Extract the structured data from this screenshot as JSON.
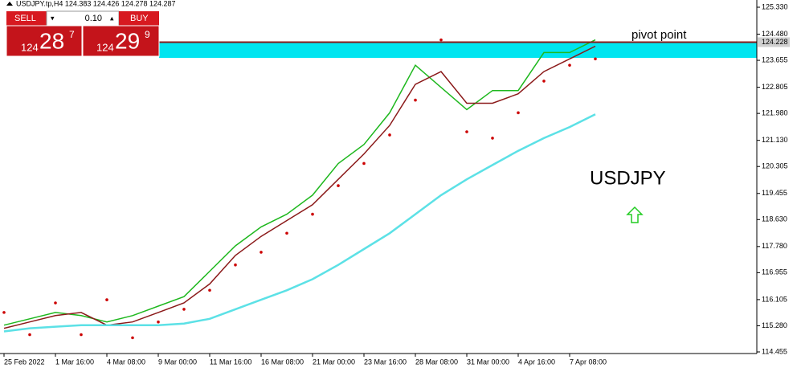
{
  "chart_data": {
    "type": "line",
    "symbol_header": "USDJPY.tp,H4  124.383 124.426 124.278 124.287",
    "x": [
      0,
      8,
      16,
      24,
      32,
      40,
      48,
      56,
      64,
      72,
      80,
      88,
      96,
      104,
      112,
      120,
      128,
      136,
      144,
      152,
      160,
      168,
      176,
      184
    ],
    "xlim": [
      -1.25,
      234.25
    ],
    "xticks": [
      {
        "value": 0,
        "label": "25 Feb 2022"
      },
      {
        "value": 16,
        "label": "1 Mar 16:00"
      },
      {
        "value": 32,
        "label": "4 Mar 08:00"
      },
      {
        "value": 48,
        "label": "9 Mar 00:00"
      },
      {
        "value": 64,
        "label": "11 Mar 16:00"
      },
      {
        "value": 80,
        "label": "16 Mar 08:00"
      },
      {
        "value": 96,
        "label": "21 Mar 00:00"
      },
      {
        "value": 112,
        "label": "23 Mar 16:00"
      },
      {
        "value": 128,
        "label": "28 Mar 08:00"
      },
      {
        "value": 144,
        "label": "31 Mar 00:00"
      },
      {
        "value": 160,
        "label": "4 Apr 16:00"
      },
      {
        "value": 176,
        "label": "7 Apr 08:00"
      }
    ],
    "ylim": [
      114.404,
      125.558
    ],
    "yticks": [
      {
        "value": 125.33,
        "label": "125.330"
      },
      {
        "value": 124.48,
        "label": "124.480"
      },
      {
        "value": 123.655,
        "label": "123.655"
      },
      {
        "value": 122.805,
        "label": "122.805"
      },
      {
        "value": 121.98,
        "label": "121.980"
      },
      {
        "value": 121.13,
        "label": "121.130"
      },
      {
        "value": 120.305,
        "label": "120.305"
      },
      {
        "value": 119.455,
        "label": "119.455"
      },
      {
        "value": 118.63,
        "label": "118.630"
      },
      {
        "value": 117.78,
        "label": "117.780"
      },
      {
        "value": 116.955,
        "label": "116.955"
      },
      {
        "value": 116.105,
        "label": "116.105"
      },
      {
        "value": 115.28,
        "label": "115.280"
      },
      {
        "value": 114.455,
        "label": "114.455"
      }
    ],
    "series": [
      {
        "style": "line",
        "color": "#1fb81f",
        "width": 1.5,
        "values": [
          115.3,
          115.5,
          115.7,
          115.6,
          115.4,
          115.6,
          115.9,
          116.2,
          117.0,
          117.8,
          118.4,
          118.8,
          119.4,
          120.4,
          121.0,
          122.0,
          123.5,
          122.8,
          122.1,
          122.7,
          122.7,
          123.9,
          123.9,
          124.3
        ]
      },
      {
        "style": "line",
        "color": "#8b1a1a",
        "width": 1.5,
        "values": [
          115.2,
          115.4,
          115.6,
          115.7,
          115.3,
          115.4,
          115.7,
          116.0,
          116.6,
          117.5,
          118.1,
          118.6,
          119.1,
          119.9,
          120.7,
          121.6,
          122.9,
          123.3,
          122.3,
          122.3,
          122.6,
          123.3,
          123.7,
          124.1
        ]
      },
      {
        "style": "line",
        "color": "#5ce1e6",
        "width": 2.5,
        "values": [
          115.1,
          115.2,
          115.25,
          115.3,
          115.3,
          115.3,
          115.3,
          115.35,
          115.5,
          115.8,
          116.1,
          116.4,
          116.75,
          117.2,
          117.7,
          118.2,
          118.8,
          119.4,
          119.9,
          120.35,
          120.8,
          121.2,
          121.55,
          121.95
        ]
      },
      {
        "style": "dots",
        "color": "#cc0000",
        "width": 1.8,
        "values": [
          115.7,
          115.0,
          116.0,
          115.0,
          116.1,
          114.9,
          115.4,
          115.8,
          116.4,
          117.2,
          117.6,
          118.2,
          118.8,
          119.7,
          120.4,
          121.3,
          122.4,
          124.3,
          121.4,
          121.2,
          122.0,
          123.0,
          123.5,
          123.7
        ]
      }
    ],
    "zone": {
      "from": 123.73,
      "to": 124.215,
      "color": "#00e5f0"
    },
    "pivot": {
      "value": 124.228,
      "label": "124.228",
      "color": "#8b1a1a"
    },
    "annotations": [
      "pivot point",
      "USDJPY"
    ]
  },
  "trade_panel": {
    "sell": "SELL",
    "buy": "BUY",
    "lot": "0.10",
    "bid": {
      "big_figure": "124",
      "pips": "28",
      "fraction": "7"
    },
    "ask": {
      "big_figure": "124",
      "pips": "29",
      "fraction": "9"
    }
  }
}
